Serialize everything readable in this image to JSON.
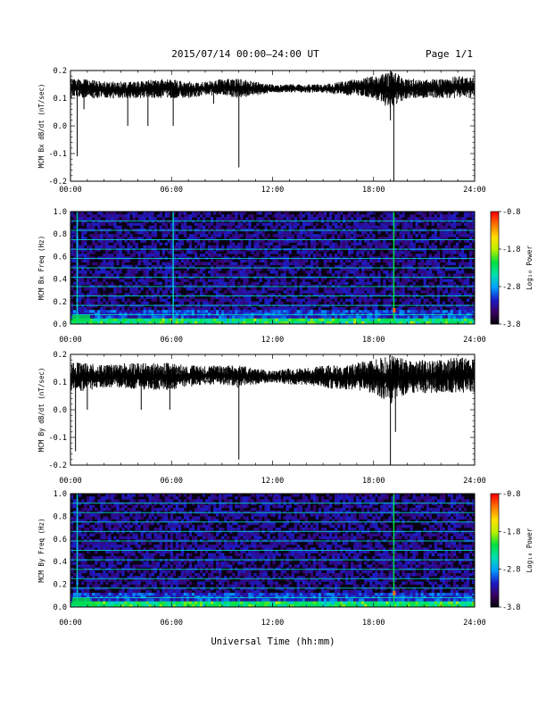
{
  "header": {
    "title": "2015/07/14  00:00–24:00 UT",
    "page": "Page 1/1"
  },
  "xaxis": {
    "title": "Universal Time (hh:mm)",
    "tick_labels": [
      "00:00",
      "06:00",
      "12:00",
      "18:00",
      "24:00"
    ]
  },
  "colorbar": {
    "label": "Log₁₀ Power",
    "tick_labels": [
      "-0.8",
      "-1.8",
      "-2.8",
      "-3.8"
    ],
    "range": [
      -3.8,
      -0.8
    ],
    "colors": [
      "#000000",
      "#3a0060",
      "#1c1cc8",
      "#00a0ff",
      "#00e0b0",
      "#00e040",
      "#b8f000",
      "#ffe000",
      "#ff7a00",
      "#ff0000"
    ]
  },
  "chart_data": [
    {
      "type": "line",
      "title": "",
      "xlabel": "",
      "ylabel": "MCM Bx dB/dt (nT/sec)",
      "xlim_hours": [
        0,
        24
      ],
      "ylim": [
        -0.2,
        0.2
      ],
      "ytick_labels": [
        "0.2",
        "0.1",
        "0.0",
        "-0.1",
        "-0.2"
      ],
      "baseline": 0.13,
      "series": [
        {
          "hours": [
            0,
            1,
            2,
            3,
            4,
            5,
            6,
            7,
            8,
            9,
            10,
            11,
            12,
            13,
            14,
            15,
            16,
            17,
            18,
            19,
            20,
            21,
            22,
            23,
            24
          ],
          "envelope_min": [
            0.1,
            0.1,
            0.1,
            0.1,
            0.1,
            0.1,
            0.1,
            0.1,
            0.11,
            0.11,
            0.1,
            0.11,
            0.12,
            0.12,
            0.12,
            0.12,
            0.11,
            0.11,
            0.1,
            0.06,
            0.1,
            0.1,
            0.1,
            0.1,
            0.1
          ],
          "envelope_max": [
            0.17,
            0.17,
            0.16,
            0.16,
            0.16,
            0.17,
            0.17,
            0.16,
            0.16,
            0.17,
            0.17,
            0.16,
            0.15,
            0.15,
            0.15,
            0.15,
            0.16,
            0.17,
            0.18,
            0.2,
            0.17,
            0.17,
            0.17,
            0.18,
            0.18
          ]
        }
      ],
      "spikes": [
        {
          "hour": 0.4,
          "value": -0.11
        },
        {
          "hour": 0.8,
          "value": 0.06
        },
        {
          "hour": 3.4,
          "value": 0.0
        },
        {
          "hour": 4.6,
          "value": 0.0
        },
        {
          "hour": 6.1,
          "value": 0.0
        },
        {
          "hour": 8.5,
          "value": 0.08
        },
        {
          "hour": 10.0,
          "value": -0.15
        },
        {
          "hour": 19.2,
          "value": -0.2
        },
        {
          "hour": 19.0,
          "value": 0.02
        }
      ]
    },
    {
      "type": "heatmap",
      "title": "",
      "xlabel": "",
      "ylabel": "MCM Bx Freq (Hz)",
      "xlim_hours": [
        0,
        24
      ],
      "ylim": [
        0,
        1.0
      ],
      "ytick_labels": [
        "1.0",
        "0.8",
        "0.6",
        "0.4",
        "0.2",
        "0.0"
      ],
      "harmonic_lines_hz": [
        0.083,
        0.166,
        0.25,
        0.333,
        0.416,
        0.5,
        0.583,
        0.666,
        0.75,
        0.833,
        0.916,
        1.0
      ],
      "bright_vertical_hours": [
        19.2,
        6.1,
        0.4
      ]
    },
    {
      "type": "line",
      "title": "",
      "xlabel": "",
      "ylabel": "MCM By dB/dt (nT/sec)",
      "xlim_hours": [
        0,
        24
      ],
      "ylim": [
        -0.2,
        0.2
      ],
      "ytick_labels": [
        "0.2",
        "0.1",
        "0.0",
        "-0.1",
        "-0.2"
      ],
      "baseline": 0.115,
      "series": [
        {
          "hours": [
            0,
            1,
            2,
            3,
            4,
            5,
            6,
            7,
            8,
            9,
            10,
            11,
            12,
            13,
            14,
            15,
            16,
            17,
            18,
            19,
            20,
            21,
            22,
            23,
            24
          ],
          "envelope_min": [
            0.06,
            0.07,
            0.08,
            0.08,
            0.07,
            0.07,
            0.07,
            0.08,
            0.09,
            0.09,
            0.08,
            0.09,
            0.1,
            0.09,
            0.09,
            0.08,
            0.07,
            0.07,
            0.06,
            0.02,
            0.06,
            0.06,
            0.06,
            0.06,
            0.06
          ],
          "envelope_max": [
            0.17,
            0.17,
            0.16,
            0.17,
            0.17,
            0.17,
            0.17,
            0.16,
            0.16,
            0.16,
            0.16,
            0.15,
            0.14,
            0.15,
            0.15,
            0.16,
            0.16,
            0.17,
            0.18,
            0.2,
            0.18,
            0.18,
            0.18,
            0.19,
            0.19
          ]
        }
      ],
      "spikes": [
        {
          "hour": 0.3,
          "value": -0.15
        },
        {
          "hour": 1.0,
          "value": 0.0
        },
        {
          "hour": 4.2,
          "value": 0.0
        },
        {
          "hour": 5.9,
          "value": 0.0
        },
        {
          "hour": 10.0,
          "value": -0.18
        },
        {
          "hour": 19.0,
          "value": -0.2
        },
        {
          "hour": 19.3,
          "value": -0.08
        }
      ]
    },
    {
      "type": "heatmap",
      "title": "",
      "xlabel": "",
      "ylabel": "MCM By Freq (Hz)",
      "xlim_hours": [
        0,
        24
      ],
      "ylim": [
        0,
        1.0
      ],
      "ytick_labels": [
        "1.0",
        "0.8",
        "0.6",
        "0.4",
        "0.2",
        "0.0"
      ],
      "harmonic_lines_hz": [
        0.083,
        0.166,
        0.25,
        0.333,
        0.416,
        0.5,
        0.583,
        0.666,
        0.75,
        0.833,
        0.916,
        1.0
      ],
      "bright_vertical_hours": [
        19.2,
        0.4
      ]
    }
  ]
}
